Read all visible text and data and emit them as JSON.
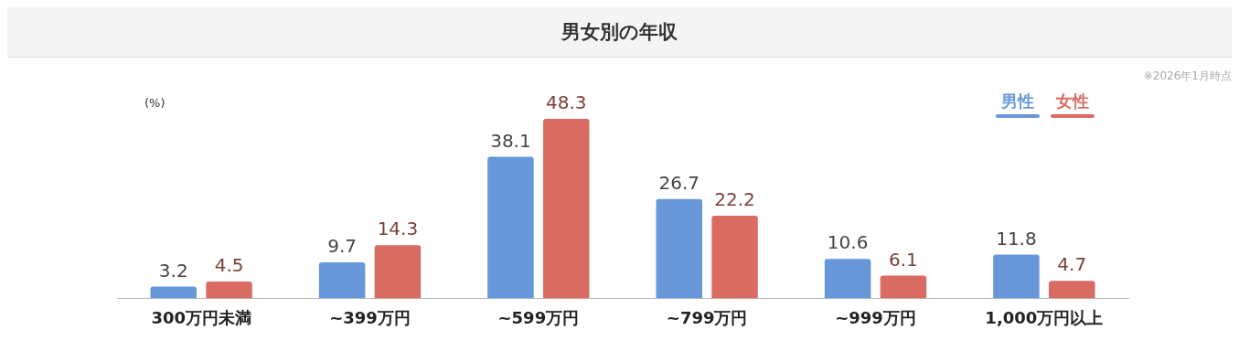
{
  "chart_data": {
    "type": "bar",
    "title": "男女別の年収",
    "ylabel": "(%)",
    "annotations": [
      "※2026年1月時点"
    ],
    "categories": [
      "300万円未満",
      "~399万円",
      "~599万円",
      "~799万円",
      "~999万円",
      "1,000万円以上"
    ],
    "series": [
      {
        "name": "男性",
        "color": "#6797d9",
        "values": [
          3.2,
          9.7,
          38.1,
          26.7,
          10.6,
          11.8
        ]
      },
      {
        "name": "女性",
        "color": "#d96b62",
        "values": [
          4.5,
          14.3,
          48.3,
          22.2,
          6.1,
          4.7
        ]
      }
    ],
    "data_labels": true,
    "legend": "top right",
    "grid": false
  }
}
